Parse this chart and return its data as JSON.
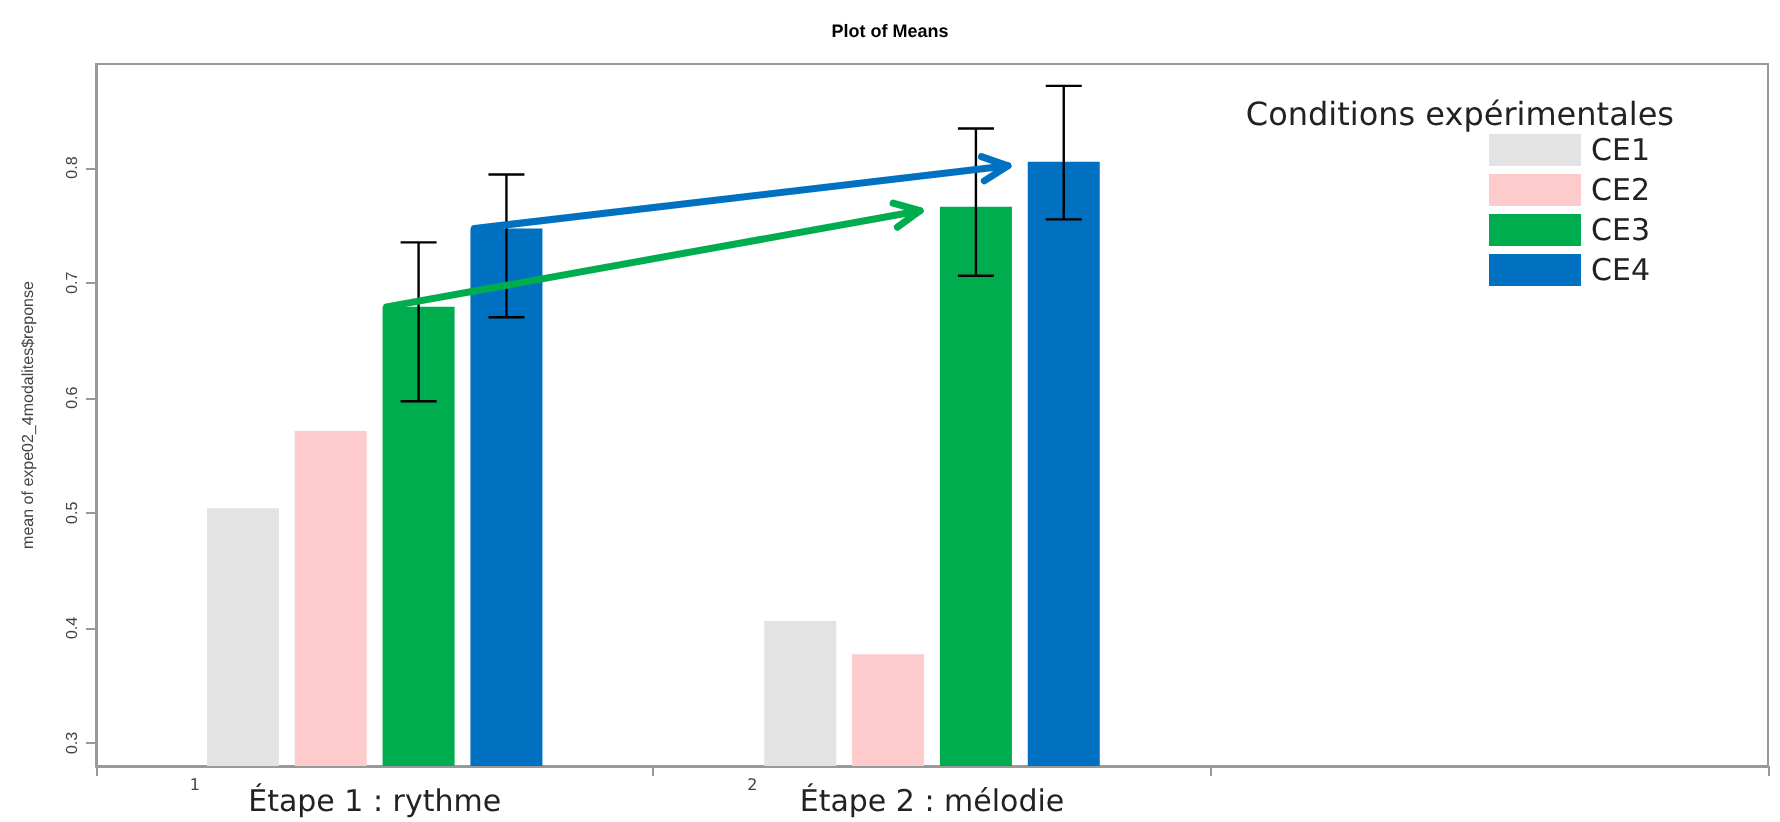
{
  "chart_data": {
    "type": "bar",
    "title": "Plot of Means",
    "ylabel": "mean of expe02_4modalites$reponse",
    "legend_title": "Conditions expérimentales",
    "categories": [
      "Étape 1 : rythme",
      "Étape 2 : mélodie",
      null
    ],
    "series": [
      {
        "name": "CE1",
        "color": "#e3e3e3",
        "values": [
          0.504,
          0.406,
          null
        ]
      },
      {
        "name": "CE2",
        "color": "#fdcbcb",
        "values": [
          0.571,
          0.377,
          null
        ]
      },
      {
        "name": "CE3",
        "color": "#00ad4e",
        "values": [
          0.679,
          0.766,
          null
        ],
        "errors": [
          [
            0.597,
            0.735
          ],
          [
            0.706,
            0.834
          ],
          null
        ]
      },
      {
        "name": "CE4",
        "color": "#0070c0",
        "values": [
          0.747,
          0.805,
          null
        ],
        "errors": [
          [
            0.67,
            0.794
          ],
          [
            0.755,
            0.871
          ],
          null
        ]
      }
    ],
    "ylim": [
      0.28,
      0.89
    ],
    "yticks": [
      0.3,
      0.4,
      0.5,
      0.6,
      0.7,
      0.8
    ],
    "grid": false,
    "legend": "top right",
    "annotations": [
      "1",
      "2"
    ]
  }
}
